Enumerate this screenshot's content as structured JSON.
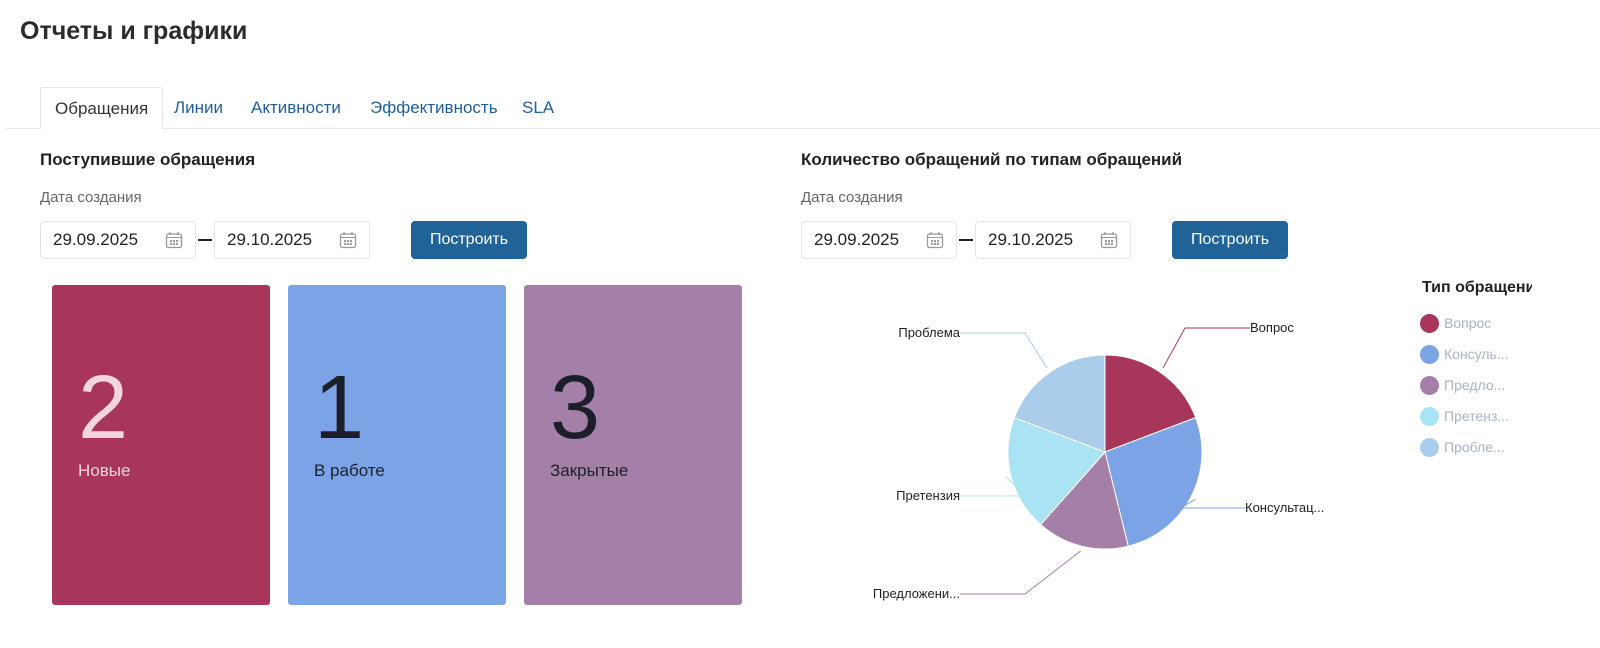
{
  "page_title": "Отчеты и графики",
  "tabs": [
    {
      "label": "Обращения",
      "active": true
    },
    {
      "label": "Линии"
    },
    {
      "label": "Активности"
    },
    {
      "label": "Эффективность"
    },
    {
      "label": "SLA"
    }
  ],
  "left": {
    "title": "Поступившие обращения",
    "date_label": "Дата создания",
    "date_from": "29.09.2025",
    "date_to": "29.10.2025",
    "build_label": "Построить",
    "cards": [
      {
        "value": "2",
        "label": "Новые",
        "color": "#A8365A"
      },
      {
        "value": "1",
        "label": "В работе",
        "color": "#7BA3E6"
      },
      {
        "value": "3",
        "label": "Закрытые",
        "color": "#A47FA8"
      }
    ]
  },
  "right": {
    "title": "Количество обращений по типам обращений",
    "date_label": "Дата создания",
    "date_from": "29.09.2025",
    "date_to": "29.10.2025",
    "build_label": "Построить",
    "legend_title": "Тип обращения"
  },
  "chart_data": {
    "type": "pie",
    "legend_title": "Тип обращения",
    "legend_placement": "right",
    "slices": [
      {
        "label": "Вопрос",
        "legend": "Вопрос",
        "value": 5,
        "color": "#A8365A"
      },
      {
        "label": "Консультац...",
        "legend": "Консуль...",
        "value": 7,
        "color": "#7BA3E6"
      },
      {
        "label": "Предложени...",
        "legend": "Предло...",
        "value": 4,
        "color": "#A47FA8"
      },
      {
        "label": "Претензия",
        "legend": "Претенз...",
        "value": 5,
        "color": "#A9E3F4"
      },
      {
        "label": "Проблема",
        "legend": "Пробле...",
        "value": 5,
        "color": "#AACDEC"
      }
    ]
  }
}
